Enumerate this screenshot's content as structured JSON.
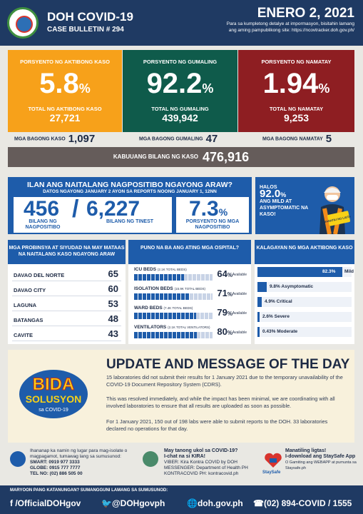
{
  "header": {
    "title": "DOH COVID-19",
    "bulletin": "CASE BULLETIN # 294",
    "date": "ENERO 2, 2021",
    "subtitle": "Para sa kumpletong detalye at impormasyon, bisitahin lamang ang aming pampublikong site: https://ncovtracker.doh.gov.ph/"
  },
  "cards": [
    {
      "label": "PORSYENTO NG AKTIBONG KASO",
      "value": "5.8",
      "pct": "%",
      "sublabel": "TOTAL NG AKTIBONG KASO",
      "count": "27,721"
    },
    {
      "label": "PORSYENTO NG GUMALING",
      "value": "92.2",
      "pct": "%",
      "sublabel": "TOTAL NG GUMALING",
      "count": "439,942"
    },
    {
      "label": "PORSYENTO NG NAMATAY",
      "value": "1.94",
      "pct": "%",
      "sublabel": "TOTAL NG NAMATAY",
      "count": "9,253"
    }
  ],
  "new": {
    "cases_label": "MGA BAGONG KASO",
    "cases": "1,097",
    "rec_label": "MGA BAGONG GUMALING",
    "rec": "47",
    "deaths_label": "MGA BAGONG NAMATAY",
    "deaths": "5"
  },
  "total": {
    "label": "KABUUANG BILANG NG KASO",
    "value": "476,916"
  },
  "today": {
    "title": "ILAN ANG NAITALANG NAGPOSITIBO NGAYONG ARAW?",
    "sub": "DATOS NGAYONG JANUARY 2 AYON SA REPORTS NOONG JANUARY 1, 12NN",
    "positive": "456",
    "slash": "/",
    "tested": "6,227",
    "pos_label": "BILANG NG NAGPOSITIBO",
    "test_label": "BILANG NG TINEST",
    "rate": "7.3",
    "rate_pct": "%",
    "rate_label": "PORSYENTO NG MGA NAGPOSITIBO"
  },
  "mild": {
    "l1": "HALOS",
    "value": "92.0",
    "pct": "%",
    "l2": "ANG MILD AT ASYMPTOMATIC NA KASO!",
    "sign": "MANATILI NG LIGTAS"
  },
  "provinces": {
    "title": "MGA PROBINSYA AT SIYUDAD NA MAY MATAAS NA NAITALANG KASO NGAYONG ARAW",
    "rows": [
      {
        "name": "DAVAO DEL NORTE",
        "value": "65"
      },
      {
        "name": "DAVAO CITY",
        "value": "60"
      },
      {
        "name": "LAGUNA",
        "value": "53"
      },
      {
        "name": "BATANGAS",
        "value": "48"
      },
      {
        "name": "CAVITE",
        "value": "43"
      }
    ]
  },
  "hospitals": {
    "title": "PUNO NA BA ANG ATING MGA OSPITAL?",
    "available": "Available",
    "rows": [
      {
        "label": "ICU BEDS",
        "total": "(2.1K TOTAL BEDS)",
        "value": "64",
        "pct": "%",
        "fraction": 0.64
      },
      {
        "label": "ISOLATION BEDS",
        "total": "(15.9K TOTAL BEDS)",
        "value": "71",
        "pct": "%",
        "fraction": 0.71
      },
      {
        "label": "WARD BEDS",
        "total": "(7.4K TOTAL BEDS)",
        "value": "79",
        "pct": "%",
        "fraction": 0.79
      },
      {
        "label": "VENTILATORS",
        "total": "(2.1K TOTAL VENTILATORS)",
        "value": "80",
        "pct": "%",
        "fraction": 0.8
      }
    ]
  },
  "status": {
    "title": "KALAGAYAN NG MGA AKTIBONG KASO",
    "rows": [
      {
        "label": "82.3%",
        "name": "Mild",
        "fraction": 0.823
      },
      {
        "label": "9.8% Asymptomatic",
        "fraction": 0.098
      },
      {
        "label": "4.9% Critical",
        "fraction": 0.049
      },
      {
        "label": "2.6% Severe",
        "fraction": 0.026
      },
      {
        "label": "0.43% Moderate",
        "fraction": 0.0043
      }
    ]
  },
  "update": {
    "logo1": "BIDA",
    "logo2": "SOLUSYON",
    "logo3": "sa COVID-19",
    "title": "UPDATE AND MESSAGE OF THE DAY",
    "p1": "15 laboratories did not submit their results for 1 January 2021 due to the temporary unavailability of the COVID-19 Document Repository System (CDRS).",
    "p2": "This was resolved immediately, and while the impact has been minimal, we are coordinating with all involved laboratories to ensure that all results are uploaded as soon as possible.",
    "p3": "For 1 January 2021, 150 out of 198 labs were able to submit reports to the DOH. 33 laboratories declared no operations for that day."
  },
  "footer": {
    "f1": "Ihananap ka namin ng lugar para mag-isolate o magpagamot, tumawag lang sa sumusunod:",
    "smart": "SMART: 0919 977 3333",
    "globe": "GLOBE: 0915 777 7777",
    "tel": "TEL NO: (02) 886 505 00",
    "f2a": "May tanong ukol sa COVID-19?",
    "f2b": "I-chat na si KIRA!",
    "viber": "VIBER: Kira Kontra COVID by DOH",
    "messenger": "MESSENGER: Department of Health PH",
    "kontra": "KONTRACOVID PH: kontracovid.ph",
    "staysafe": "StaySafe",
    "f3a": "Manatiling ligtas!",
    "f3b": "I-download ang StaySafe App",
    "f3c": "O Gamiting ang WEBAPP at pumunta sa Staysafe.ph"
  },
  "bar": {
    "msg": "MARYOON PANG KATANUNGAN? SUMANGGUNI LAMANG SA SUMUSUNOD:",
    "fb": "/OfficialDOHgov",
    "tw": "@DOHgovph",
    "web": "doh.gov.ph",
    "phone": "(02) 894-COVID / 1555"
  },
  "colors": {
    "orange": "#f7a11a",
    "green": "#0f5b4b",
    "red": "#8e1e22",
    "blue": "#1e5caa",
    "navy": "#1f3a63"
  }
}
